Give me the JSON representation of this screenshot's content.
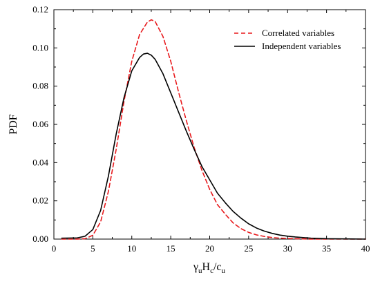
{
  "chart_data": {
    "type": "line",
    "title": "",
    "xlabel_parts": [
      {
        "text": "γ",
        "sub": "u"
      },
      {
        "text": "H",
        "sub": "c"
      },
      {
        "text": "/c",
        "sub": "u"
      }
    ],
    "ylabel": "PDF",
    "xlim": [
      0,
      40
    ],
    "ylim": [
      0,
      0.12
    ],
    "xticks": [
      0,
      5,
      10,
      15,
      20,
      25,
      30,
      35,
      40
    ],
    "yticks": [
      0.0,
      0.02,
      0.04,
      0.06,
      0.08,
      0.1,
      0.12
    ],
    "ytick_labels": [
      "0.00",
      "0.02",
      "0.04",
      "0.06",
      "0.08",
      "0.10",
      "0.12"
    ],
    "grid": false,
    "legend_position": "top-right",
    "series": [
      {
        "name": "Correlated variables",
        "color": "#e8191c",
        "dash": "dashed",
        "x": [
          1,
          3,
          4,
          5,
          6,
          7,
          8,
          9,
          10,
          11,
          12,
          12.5,
          13,
          14,
          15,
          16,
          17,
          18,
          19,
          20,
          21,
          22,
          23,
          24,
          25,
          26,
          27,
          28,
          29,
          30,
          31,
          32,
          33,
          35,
          37,
          40
        ],
        "y": [
          0.0,
          0.0,
          0.0002,
          0.002,
          0.009,
          0.025,
          0.047,
          0.072,
          0.093,
          0.107,
          0.1135,
          0.1147,
          0.1138,
          0.106,
          0.093,
          0.077,
          0.062,
          0.048,
          0.036,
          0.026,
          0.018,
          0.013,
          0.0085,
          0.0055,
          0.0035,
          0.0022,
          0.0014,
          0.0008,
          0.0005,
          0.0003,
          0.0002,
          0.0001,
          0.0,
          0.0,
          0.0,
          0.0
        ]
      },
      {
        "name": "Independent variables",
        "color": "#000000",
        "dash": "solid",
        "x": [
          1,
          3,
          4,
          5,
          6,
          7,
          8,
          9,
          10,
          11,
          11.5,
          12,
          12.5,
          13,
          14,
          15,
          16,
          17,
          18,
          19,
          20,
          21,
          22,
          23,
          24,
          25,
          26,
          27,
          28,
          29,
          30,
          31,
          32,
          33,
          35,
          37,
          40
        ],
        "y": [
          0.0005,
          0.0006,
          0.0015,
          0.005,
          0.015,
          0.033,
          0.055,
          0.074,
          0.088,
          0.095,
          0.0968,
          0.0972,
          0.0962,
          0.094,
          0.0865,
          0.0765,
          0.0665,
          0.0565,
          0.047,
          0.038,
          0.031,
          0.024,
          0.019,
          0.0145,
          0.011,
          0.008,
          0.0058,
          0.0042,
          0.003,
          0.0021,
          0.0015,
          0.0011,
          0.0008,
          0.0005,
          0.0002,
          0.0001,
          0.0
        ]
      }
    ]
  }
}
